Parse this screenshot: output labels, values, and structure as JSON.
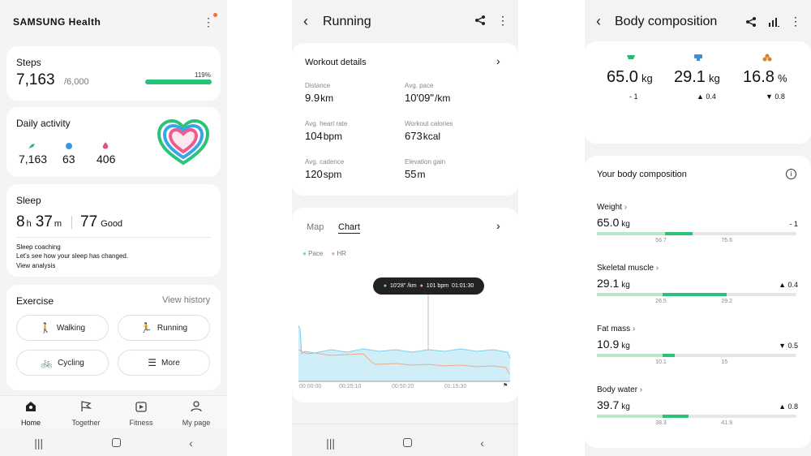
{
  "home": {
    "brand": "SAMSUNG Health",
    "steps": {
      "title": "Steps",
      "value": "7,163",
      "goal": "/6,000",
      "percent_label": "119%",
      "progress": 1.19
    },
    "daily": {
      "title": "Daily activity",
      "steps": "7,163",
      "minutes": "63",
      "calories": "406"
    },
    "sleep": {
      "title": "Sleep",
      "h": "8",
      "h_unit": "h",
      "m": "37",
      "m_unit": "m",
      "score": "77",
      "score_label": "Good",
      "coaching_title": "Sleep coaching",
      "coaching_text": "Let's see how your sleep has changed.",
      "coaching_link": "View analysis"
    },
    "exercise": {
      "title": "Exercise",
      "history": "View history",
      "buttons": [
        "Walking",
        "Running",
        "Cycling",
        "More"
      ]
    },
    "nav": [
      "Home",
      "Together",
      "Fitness",
      "My page"
    ]
  },
  "running": {
    "title": "Running",
    "details_title": "Workout details",
    "stats": [
      {
        "label": "Distance",
        "value": "9.9",
        "unit": "km"
      },
      {
        "label": "Avg. pace",
        "value": "10'09\"",
        "unit": "/km"
      },
      {
        "label": "Avg. heart rate",
        "value": "104",
        "unit": "bpm"
      },
      {
        "label": "Workout calories",
        "value": "673",
        "unit": "kcal"
      },
      {
        "label": "Avg. cadence",
        "value": "120",
        "unit": "spm"
      },
      {
        "label": "Elevation gain",
        "value": "55",
        "unit": "m"
      }
    ],
    "tabs": [
      "Map",
      "Chart"
    ],
    "legend": [
      "Pace",
      "HR"
    ],
    "tooltip": {
      "pace": "10'28\" /km",
      "hr": "101 bpm",
      "time": "01:01:30"
    },
    "x_ticks": [
      "00:00:00",
      "00:25:10",
      "00:50:20",
      "01:15:30"
    ],
    "colors": {
      "pace": "#7dcfe8",
      "hr": "#f0a88a"
    }
  },
  "body": {
    "title": "Body composition",
    "summary": [
      {
        "value": "65.0",
        "unit": "kg",
        "delta": "- 1",
        "color": "#2bb673",
        "icon": "weight-icon"
      },
      {
        "value": "29.1",
        "unit": "kg",
        "delta": "▲ 0.4",
        "color": "#3a8fd8",
        "icon": "muscle-icon"
      },
      {
        "value": "16.8",
        "unit": "%",
        "delta": "▼ 0.8",
        "color": "#d9822b",
        "icon": "fat-icon"
      }
    ],
    "section_title": "Your body composition",
    "rows": [
      {
        "label": "Weight",
        "value": "65.0",
        "unit": "kg",
        "delta": "- 1",
        "t1": "56.7",
        "t2": "76.6"
      },
      {
        "label": "Skeletal muscle",
        "value": "29.1",
        "unit": "kg",
        "delta": "▲ 0.4",
        "t1": "26.5",
        "t2": "29.2"
      },
      {
        "label": "Fat mass",
        "value": "10.9",
        "unit": "kg",
        "delta": "▼ 0.5",
        "t1": "10.1",
        "t2": "15"
      },
      {
        "label": "Body water",
        "value": "39.7",
        "unit": "kg",
        "delta": "▲ 0.8",
        "t1": "38.3",
        "t2": "41.9"
      }
    ]
  }
}
